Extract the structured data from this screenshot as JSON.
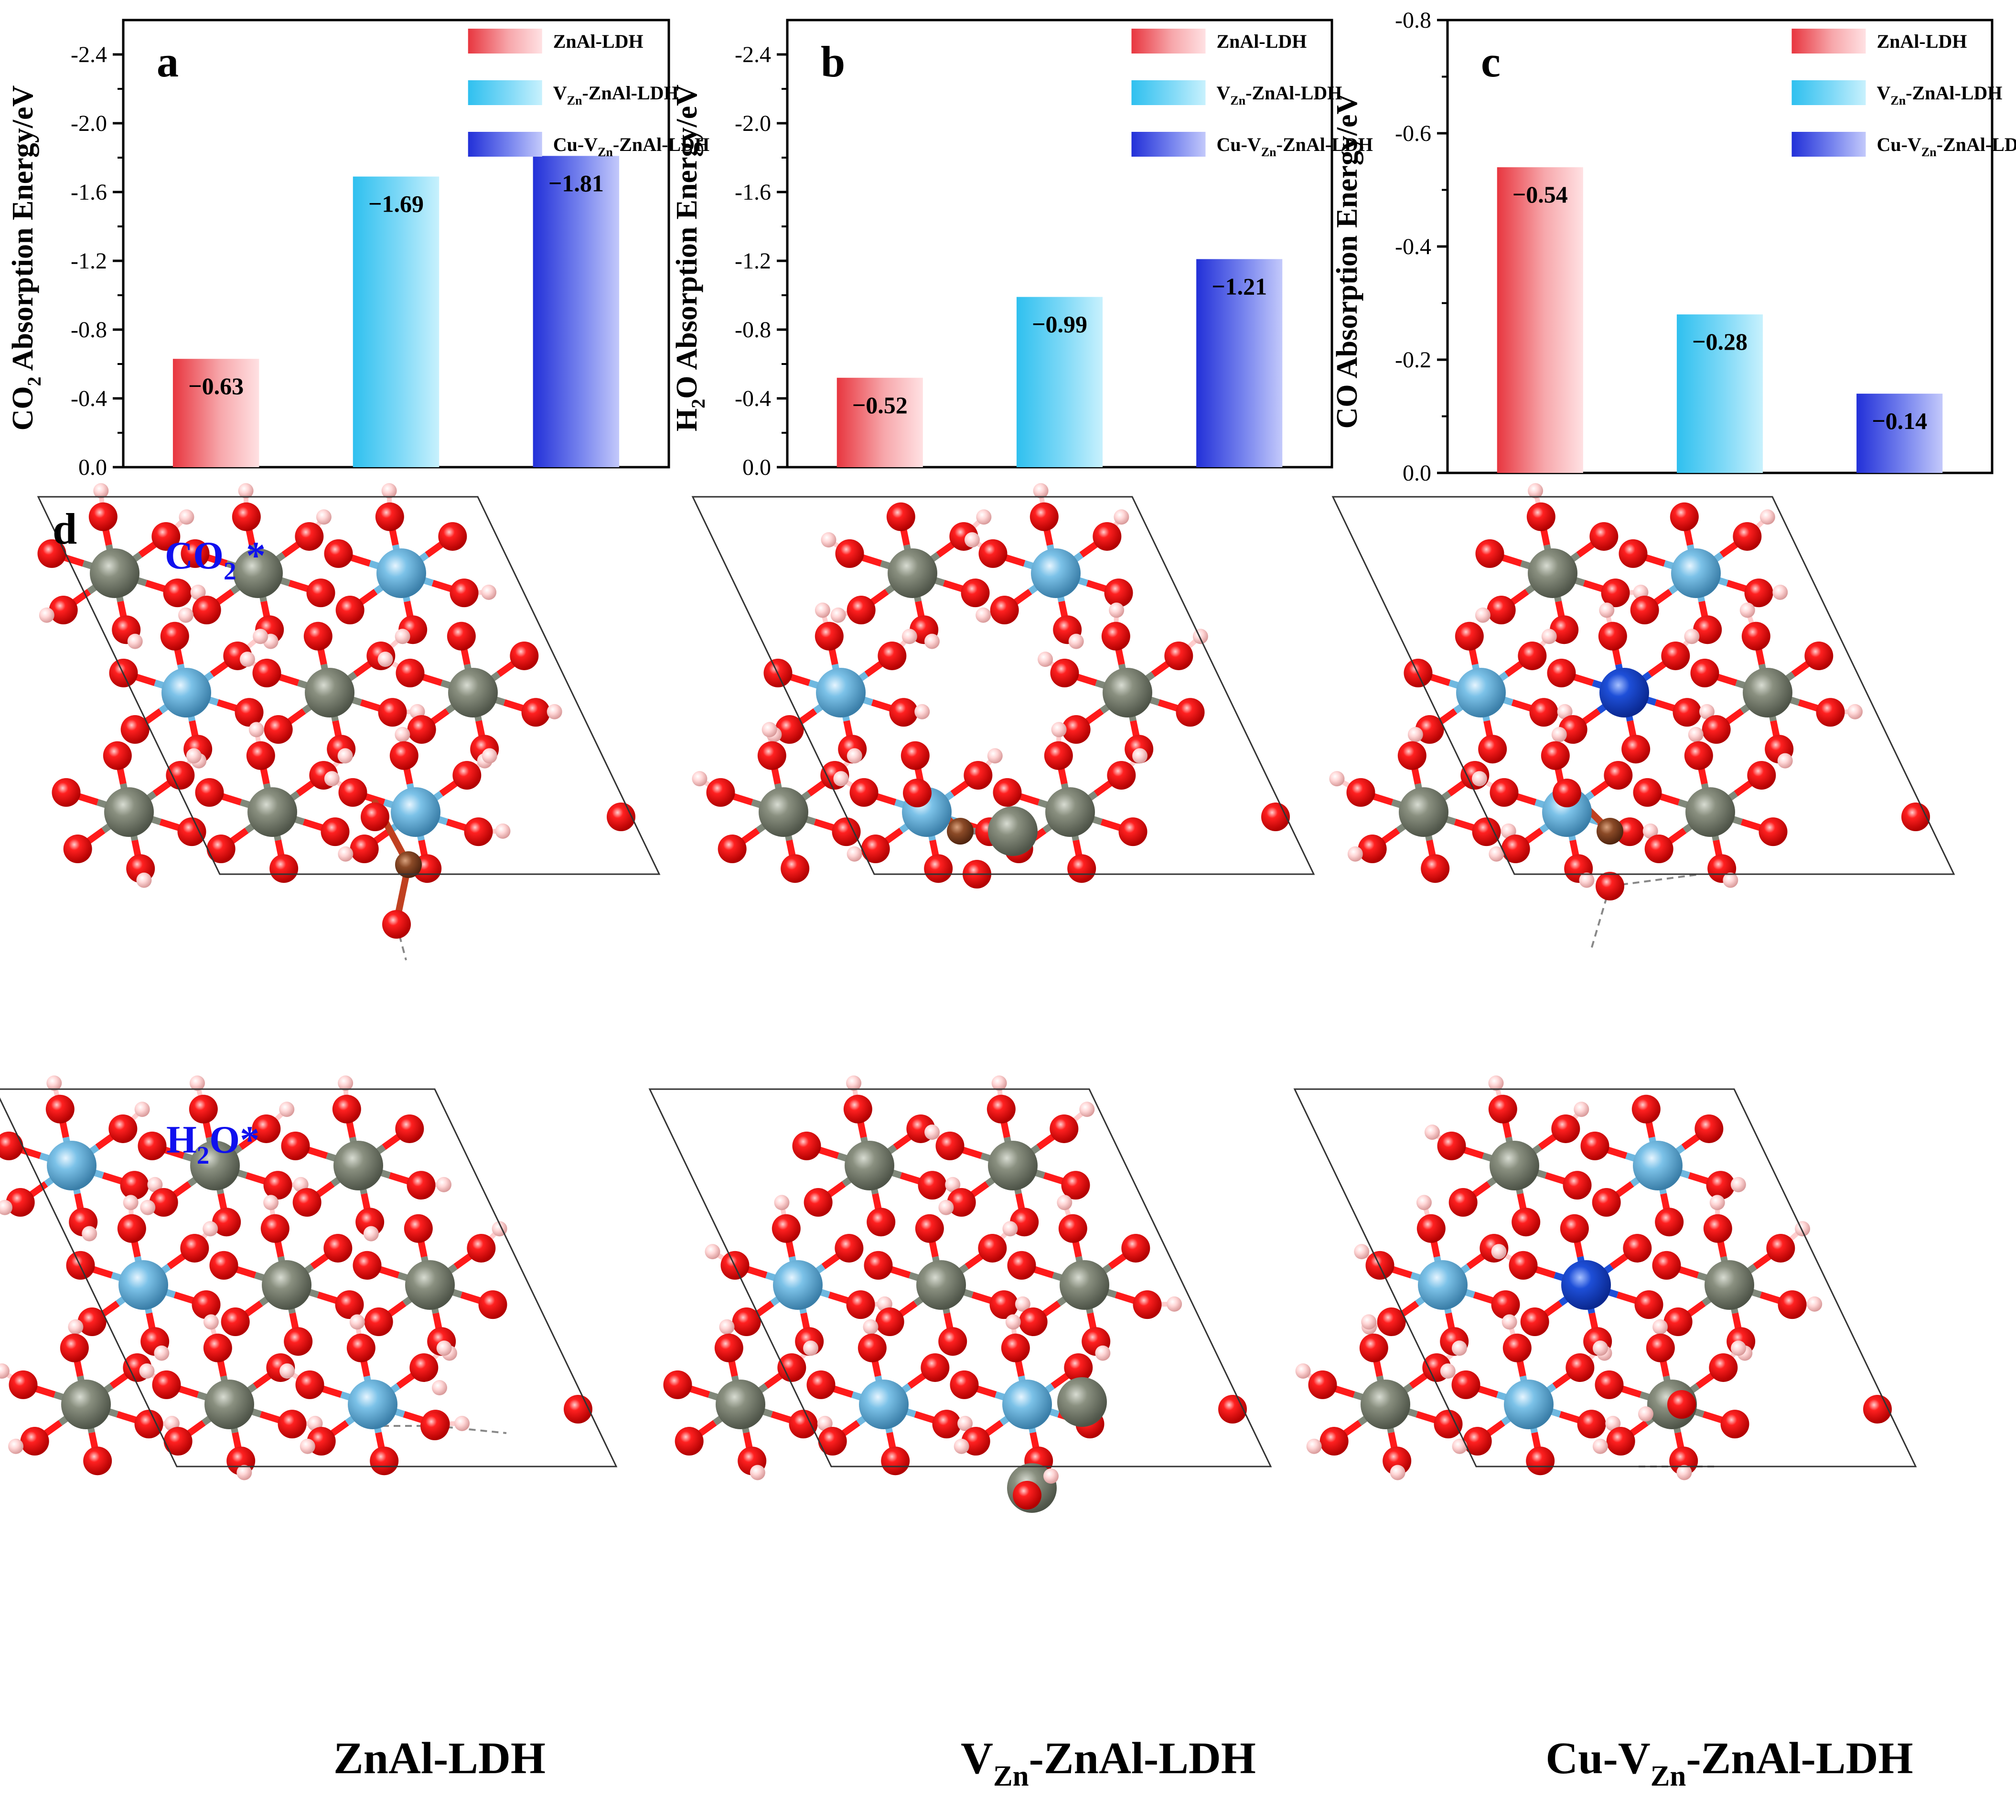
{
  "colors": {
    "red_grad": [
      "#e8363f",
      "#f7a7ab",
      "#ffe1e3"
    ],
    "cyan_grad": [
      "#2fc0ef",
      "#7fd9f7",
      "#c8f1fd"
    ],
    "blue_grad": [
      "#2230d8",
      "#7683ee",
      "#c3c9fb"
    ],
    "oxygen": "#ff0d0d",
    "hydrogen": "#ffcccc",
    "zinc": "#808878",
    "aluminum": "#6fb8e0",
    "carbon": "#8b4a27",
    "copper": "#1e4fd8",
    "label_blue": "#1010ee"
  },
  "legend_entries": {
    "s1": {
      "main": "ZnAl-LDH"
    },
    "s2": {
      "pre": "V",
      "sub": "Zn",
      "post": "-ZnAl-LDH"
    },
    "s3": {
      "pre": "Cu-V",
      "sub": "Zn",
      "post": "-ZnAl-LDH"
    }
  },
  "chart_data": [
    {
      "type": "bar",
      "panel_label": "a",
      "ylabel": {
        "pre": "CO",
        "sub": "2",
        "post": " Absorption Energy/eV"
      },
      "categories": [
        "ZnAl-LDH",
        "VZn-ZnAl-LDH",
        "Cu-VZn-ZnAl-LDH"
      ],
      "values": [
        -0.63,
        -1.69,
        -1.81
      ],
      "value_labels": [
        "−0.63",
        "−1.69",
        "−1.81"
      ],
      "ylim": [
        0,
        -2.6
      ],
      "yticks": [
        "0.0",
        "-0.4",
        "-0.8",
        "-1.2",
        "-1.6",
        "-2.0",
        "-2.4"
      ],
      "ytick_values": [
        0,
        -0.4,
        -0.8,
        -1.2,
        -1.6,
        -2.0,
        -2.4
      ],
      "legend_position": "top-right"
    },
    {
      "type": "bar",
      "panel_label": "b",
      "ylabel": {
        "pre": "H",
        "sub": "2",
        "post": "O Absorption Energy/eV"
      },
      "categories": [
        "ZnAl-LDH",
        "VZn-ZnAl-LDH",
        "Cu-VZn-ZnAl-LDH"
      ],
      "values": [
        -0.52,
        -0.99,
        -1.21
      ],
      "value_labels": [
        "−0.52",
        "−0.99",
        "−1.21"
      ],
      "ylim": [
        0,
        -2.6
      ],
      "yticks": [
        "0.0",
        "-0.4",
        "-0.8",
        "-1.2",
        "-1.6",
        "-2.0",
        "-2.4"
      ],
      "ytick_values": [
        0,
        -0.4,
        -0.8,
        -1.2,
        -1.6,
        -2.0,
        -2.4
      ],
      "legend_position": "top-right"
    },
    {
      "type": "bar",
      "panel_label": "c",
      "ylabel": {
        "pre": "CO",
        "sub": "",
        "post": " Absorption Energy/eV"
      },
      "categories": [
        "ZnAl-LDH",
        "VZn-ZnAl-LDH",
        "Cu-VZn-ZnAl-LDH"
      ],
      "values": [
        -0.54,
        -0.28,
        -0.14
      ],
      "value_labels": [
        "−0.54",
        "−0.28",
        "−0.14"
      ],
      "ylim": [
        0,
        -0.8
      ],
      "yticks": [
        "0.0",
        "-0.2",
        "-0.4",
        "-0.6",
        "-0.8"
      ],
      "ytick_values": [
        0,
        -0.2,
        -0.4,
        -0.6,
        -0.8
      ],
      "legend_position": "top-right"
    }
  ],
  "structures": {
    "panel_label": "d",
    "row1_label": {
      "pre": "CO",
      "sub": "2",
      "post": " *"
    },
    "row2_label": {
      "pre": "H",
      "sub": "2",
      "post": "O*"
    },
    "columns": [
      {
        "pre": "ZnAl-LDH",
        "sub": "",
        "post": ""
      },
      {
        "pre": "V",
        "sub": "Zn",
        "post": "-ZnAl-LDH"
      },
      {
        "pre": "Cu-V",
        "sub": "Zn",
        "post": "-ZnAl-LDH"
      }
    ]
  }
}
